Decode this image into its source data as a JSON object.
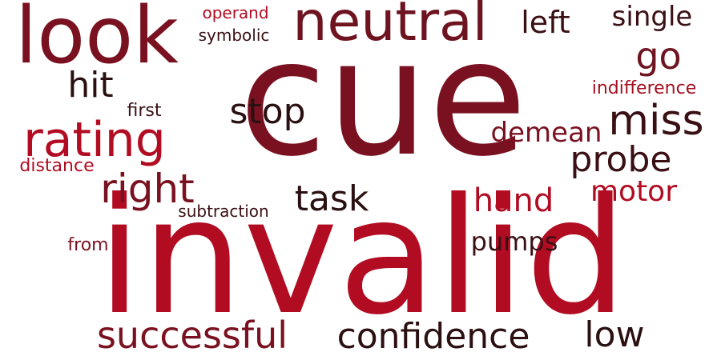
{
  "words": [
    {
      "text": "invalid",
      "color": "#b20c22"
    },
    {
      "text": "cue",
      "color": "#7a1120"
    },
    {
      "text": "look",
      "color": "#7a1120"
    },
    {
      "text": "neutral",
      "color": "#6e1420"
    },
    {
      "text": "single",
      "color": "#3a1014"
    },
    {
      "text": "left",
      "color": "#3a1014"
    },
    {
      "text": "go",
      "color": "#6e1420"
    },
    {
      "text": "operand",
      "color": "#b20c22"
    },
    {
      "text": "symbolic",
      "color": "#3a1014"
    },
    {
      "text": "indifference",
      "color": "#a3101f"
    },
    {
      "text": "hit",
      "color": "#2b1012"
    },
    {
      "text": "rating",
      "color": "#b20c22"
    },
    {
      "text": "stop",
      "color": "#2b1012"
    },
    {
      "text": "first",
      "color": "#3a1014"
    },
    {
      "text": "miss",
      "color": "#3a1014"
    },
    {
      "text": "demean",
      "color": "#7a1120"
    },
    {
      "text": "probe",
      "color": "#3a1014"
    },
    {
      "text": "distance",
      "color": "#b20c22"
    },
    {
      "text": "right",
      "color": "#7a1120"
    },
    {
      "text": "task",
      "color": "#2b1012"
    },
    {
      "text": "hand",
      "color": "#b20c22"
    },
    {
      "text": "motor",
      "color": "#b20c22"
    },
    {
      "text": "subtraction",
      "color": "#3a1014"
    },
    {
      "text": "from",
      "color": "#7a1120"
    },
    {
      "text": "pumps",
      "color": "#3a1014"
    },
    {
      "text": "successful",
      "color": "#7a1120"
    },
    {
      "text": "confidence",
      "color": "#2b1012"
    },
    {
      "text": "low",
      "color": "#2b1012"
    }
  ]
}
